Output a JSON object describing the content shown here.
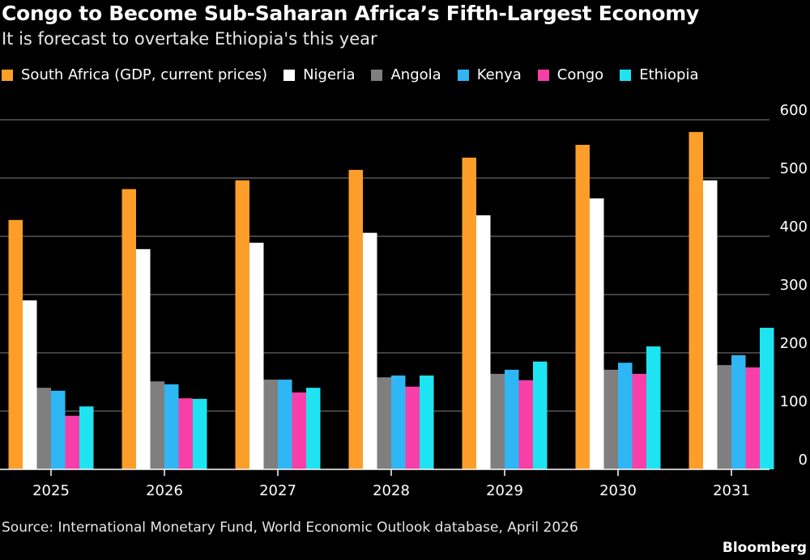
{
  "chart_data": {
    "type": "bar",
    "title": "Congo to Become Sub-Saharan Africa’s Fifth-Largest Economy",
    "subtitle": "It is forecast to overtake Ethiopia's this year",
    "categories": [
      "2025",
      "2026",
      "2027",
      "2028",
      "2029",
      "2030",
      "2031"
    ],
    "series": [
      {
        "name": "South Africa (GDP, current prices)",
        "color": "#fd9e2a",
        "values": [
          428,
          481,
          496,
          514,
          535,
          557,
          579
        ]
      },
      {
        "name": "Nigeria",
        "color": "#ffffff",
        "values": [
          290,
          378,
          389,
          406,
          436,
          465,
          496
        ]
      },
      {
        "name": "Angola",
        "color": "#7f7f7f",
        "values": [
          140,
          151,
          154,
          158,
          164,
          171,
          179
        ]
      },
      {
        "name": "Kenya",
        "color": "#2fb6f5",
        "values": [
          135,
          146,
          154,
          161,
          171,
          183,
          196
        ]
      },
      {
        "name": "Congo",
        "color": "#f83fa9",
        "values": [
          92,
          122,
          132,
          142,
          153,
          164,
          175
        ]
      },
      {
        "name": "Ethiopia",
        "color": "#1ee4f2",
        "values": [
          108,
          121,
          140,
          161,
          185,
          211,
          243
        ]
      }
    ],
    "yticks": [
      0,
      100,
      200,
      300,
      400,
      500,
      600
    ],
    "ylim": [
      0,
      600
    ],
    "grid": true,
    "legend_position": "top-left",
    "y_axis_side": "right"
  },
  "source": "Source: International Monetary Fund, World Economic Outlook database, April 2026",
  "brand": "Bloomberg"
}
